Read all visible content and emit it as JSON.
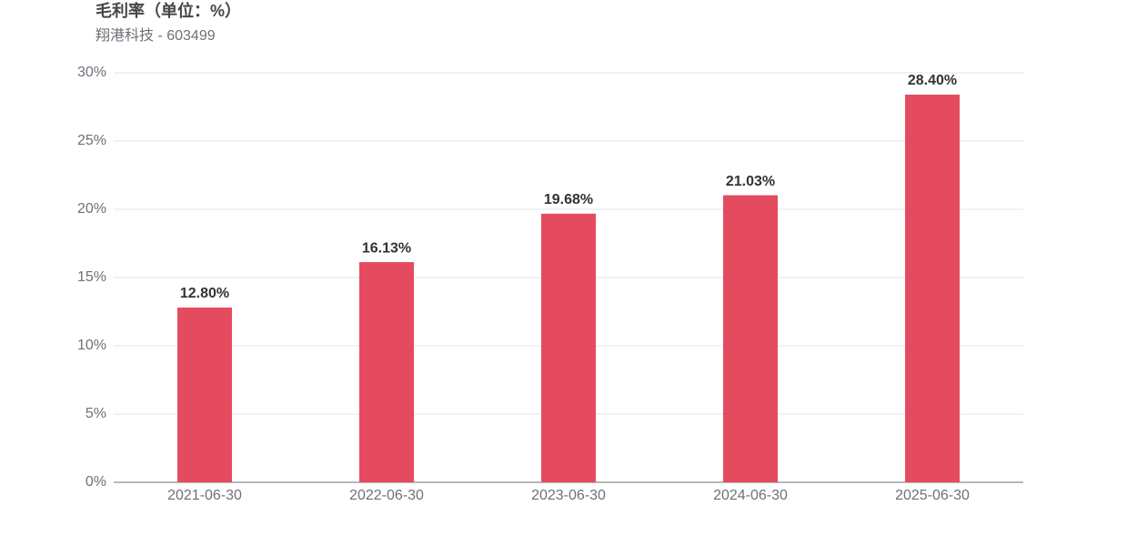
{
  "chart_data": {
    "type": "bar",
    "title": "毛利率（单位：%）",
    "subtitle": "翔港科技 - 603499",
    "categories": [
      "2021-06-30",
      "2022-06-30",
      "2023-06-30",
      "2024-06-30",
      "2025-06-30"
    ],
    "values": [
      12.8,
      16.13,
      19.68,
      21.03,
      28.4
    ],
    "value_labels": [
      "12.80%",
      "16.13%",
      "19.68%",
      "21.03%",
      "28.40%"
    ],
    "color": "#e54b5e",
    "ylim": [
      0,
      30
    ],
    "yticks": [
      {
        "value": 0,
        "label": "0%"
      },
      {
        "value": 5,
        "label": "5%"
      },
      {
        "value": 10,
        "label": "10%"
      },
      {
        "value": 15,
        "label": "15%"
      },
      {
        "value": 20,
        "label": "20%"
      },
      {
        "value": 25,
        "label": "25%"
      },
      {
        "value": 30,
        "label": "30%"
      }
    ],
    "grid": true
  }
}
